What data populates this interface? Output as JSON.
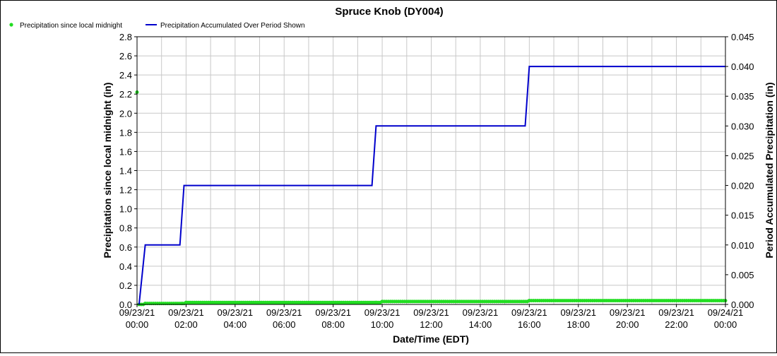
{
  "chart_data": {
    "type": "line",
    "title": "Spruce Knob (DY004)",
    "xlabel": "Date/Time (EDT)",
    "ylabel_left": "Precipitation since local midnight (in)",
    "ylabel_right": "Period Accumulated Precipitation (in)",
    "ylim_left": [
      0,
      2.8
    ],
    "ylim_right": [
      0,
      0.045
    ],
    "y_ticks_left": [
      "0.0",
      "0.2",
      "0.4",
      "0.6",
      "0.8",
      "1.0",
      "1.2",
      "1.4",
      "1.6",
      "1.8",
      "2.0",
      "2.2",
      "2.4",
      "2.6",
      "2.8"
    ],
    "y_ticks_right": [
      "0.000",
      "0.005",
      "0.010",
      "0.015",
      "0.020",
      "0.025",
      "0.030",
      "0.035",
      "0.040",
      "0.045"
    ],
    "x_range": [
      "09/23/21 00:00",
      "09/24/21 00:00"
    ],
    "x_ticks": [
      {
        "date": "09/23/21",
        "time": "00:00"
      },
      {
        "date": "09/23/21",
        "time": "02:00"
      },
      {
        "date": "09/23/21",
        "time": "04:00"
      },
      {
        "date": "09/23/21",
        "time": "06:00"
      },
      {
        "date": "09/23/21",
        "time": "08:00"
      },
      {
        "date": "09/23/21",
        "time": "10:00"
      },
      {
        "date": "09/23/21",
        "time": "12:00"
      },
      {
        "date": "09/23/21",
        "time": "14:00"
      },
      {
        "date": "09/23/21",
        "time": "16:00"
      },
      {
        "date": "09/23/21",
        "time": "18:00"
      },
      {
        "date": "09/23/21",
        "time": "20:00"
      },
      {
        "date": "09/23/21",
        "time": "22:00"
      },
      {
        "date": "09/24/21",
        "time": "00:00"
      }
    ],
    "grid": true,
    "legend_position": "top-left",
    "series": [
      {
        "name": "Precipitation since local midnight",
        "axis": "left",
        "style": "points",
        "color": "#22dd22",
        "points": [
          {
            "x": "09/23/21 00:00",
            "y": 2.22
          },
          {
            "x": "09/23/21 00:05",
            "y": 0.0
          },
          {
            "x": "09/23/21 00:20",
            "y": 0.01
          },
          {
            "x": "09/23/21 01:50",
            "y": 0.01
          },
          {
            "x": "09/23/21 02:00",
            "y": 0.02
          },
          {
            "x": "09/23/21 09:45",
            "y": 0.02
          },
          {
            "x": "09/23/21 10:00",
            "y": 0.03
          },
          {
            "x": "09/23/21 15:55",
            "y": 0.03
          },
          {
            "x": "09/23/21 16:00",
            "y": 0.04
          },
          {
            "x": "09/24/21 00:00",
            "y": 0.04
          }
        ]
      },
      {
        "name": "Precipitation Accumulated Over Period Shown",
        "axis": "right",
        "style": "step-line",
        "color": "#0000cc",
        "points": [
          {
            "x": "09/23/21 00:05",
            "y": 0.0
          },
          {
            "x": "09/23/21 00:20",
            "y": 0.01
          },
          {
            "x": "09/23/21 01:45",
            "y": 0.01
          },
          {
            "x": "09/23/21 01:55",
            "y": 0.02
          },
          {
            "x": "09/23/21 09:35",
            "y": 0.02
          },
          {
            "x": "09/23/21 09:45",
            "y": 0.03
          },
          {
            "x": "09/23/21 15:50",
            "y": 0.03
          },
          {
            "x": "09/23/21 16:00",
            "y": 0.04
          },
          {
            "x": "09/24/21 00:00",
            "y": 0.04
          }
        ]
      }
    ]
  }
}
